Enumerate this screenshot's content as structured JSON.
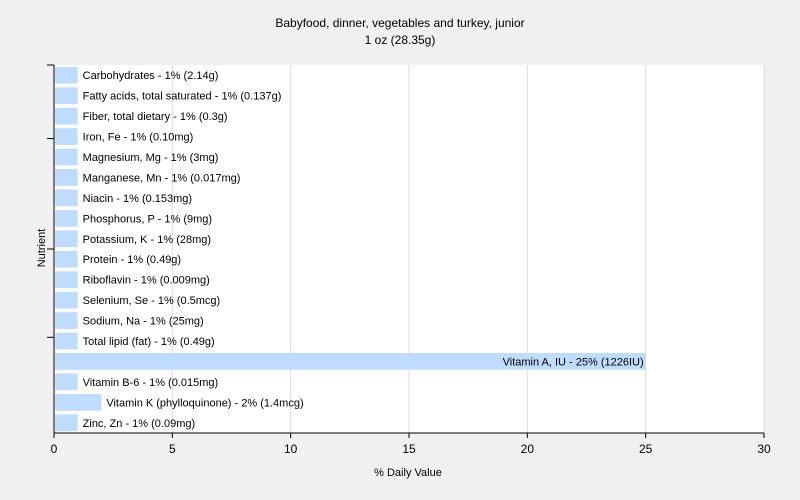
{
  "chart_data": {
    "type": "bar",
    "orientation": "horizontal",
    "title": "Babyfood, dinner, vegetables and turkey, junior",
    "subtitle": "1 oz (28.35g)",
    "xlabel": "% Daily Value",
    "ylabel": "Nutrient",
    "xlim": [
      0,
      30
    ],
    "xticks": [
      0,
      5,
      10,
      15,
      20,
      25,
      30
    ],
    "grid": true,
    "bar_color": "#bfdcff",
    "background_color": "#f0f0f0",
    "plot_background_color": "#ffffff",
    "categories": [
      "Carbohydrates",
      "Fatty acids, total saturated",
      "Fiber, total dietary",
      "Iron, Fe",
      "Magnesium, Mg",
      "Manganese, Mn",
      "Niacin",
      "Phosphorus, P",
      "Potassium, K",
      "Protein",
      "Riboflavin",
      "Selenium, Se",
      "Sodium, Na",
      "Total lipid (fat)",
      "Vitamin A, IU",
      "Vitamin B-6",
      "Vitamin K (phylloquinone)",
      "Zinc, Zn"
    ],
    "values": [
      1,
      1,
      1,
      1,
      1,
      1,
      1,
      1,
      1,
      1,
      1,
      1,
      1,
      1,
      25,
      1,
      2,
      1
    ],
    "labels": [
      "Carbohydrates - 1% (2.14g)",
      "Fatty acids, total saturated - 1% (0.137g)",
      "Fiber, total dietary - 1% (0.3g)",
      "Iron, Fe - 1% (0.10mg)",
      "Magnesium, Mg - 1% (3mg)",
      "Manganese, Mn - 1% (0.017mg)",
      "Niacin - 1% (0.153mg)",
      "Phosphorus, P - 1% (9mg)",
      "Potassium, K - 1% (28mg)",
      "Protein - 1% (0.49g)",
      "Riboflavin - 1% (0.009mg)",
      "Selenium, Se - 1% (0.5mcg)",
      "Sodium, Na - 1% (25mg)",
      "Total lipid (fat) - 1% (0.49g)",
      "Vitamin A, IU - 25% (1226IU)",
      "Vitamin B-6 - 1% (0.015mg)",
      "Vitamin K (phylloquinone) - 2% (1.4mcg)",
      "Zinc, Zn - 1% (0.09mg)"
    ]
  }
}
